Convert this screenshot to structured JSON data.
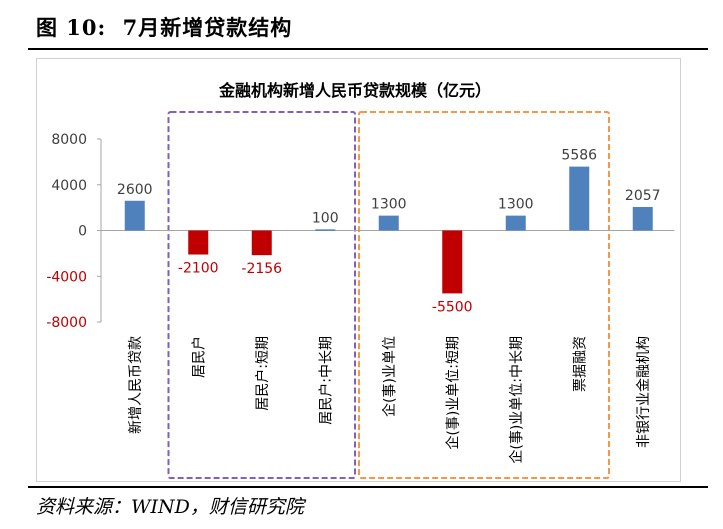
{
  "figure": {
    "label": "图 10:",
    "title": "7月新增贷款结构",
    "source": "资料来源：WIND，财信研究院"
  },
  "colors": {
    "positive": "#4f81bd",
    "negative": "#c00000",
    "group1": "#7f5fbf",
    "group2": "#f79646"
  },
  "chart_data": {
    "type": "bar",
    "title": "金融机构新增人民币贷款规模（亿元）",
    "categories": [
      "新增人民币贷款",
      "居民户",
      "居民户:短期",
      "居民户:中长期",
      "企(事)业单位",
      "企(事)业单位:短期",
      "企(事)业单位:中长期",
      "票据融资",
      "非银行业金融机构"
    ],
    "values": [
      2600,
      -2100,
      -2156,
      100,
      1300,
      -5500,
      1300,
      5586,
      2057
    ],
    "data_labels": [
      "2600",
      "-2100",
      "-2156",
      "100",
      "1300",
      "-5500",
      "1300",
      "5586",
      "2057"
    ],
    "yticks": [
      "8000",
      "4000",
      "0",
      "-4000",
      "-8000"
    ],
    "ytick_values": [
      8000,
      4000,
      0,
      -4000,
      -8000
    ],
    "ylim": [
      -8000,
      8000
    ],
    "groups": [
      {
        "name": "居民户",
        "style": "dashed",
        "color": "purple",
        "from": 1,
        "to": 3
      },
      {
        "name": "企(事)业单位",
        "style": "dashed",
        "color": "orange",
        "from": 4,
        "to": 7
      }
    ]
  }
}
